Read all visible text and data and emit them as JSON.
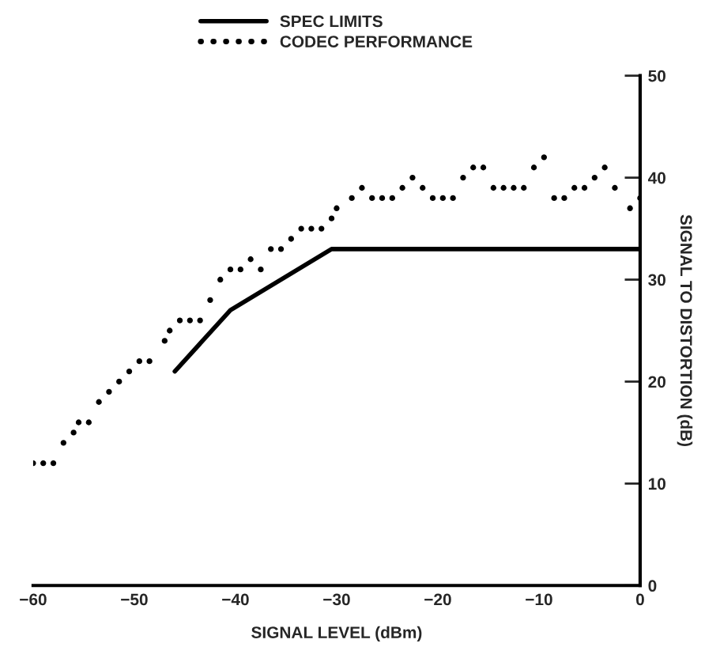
{
  "chart_data": {
    "type": "line",
    "xlabel": "SIGNAL LEVEL (dBm)",
    "ylabel": "SIGNAL TO DISTORTION (dB)",
    "xlim": [
      -60,
      0
    ],
    "xticks": [
      -60,
      -50,
      -40,
      -30,
      -20,
      -10,
      0
    ],
    "ylim": [
      0,
      50
    ],
    "yticks": [
      0,
      10,
      20,
      30,
      40,
      50
    ],
    "grid": false,
    "legend": "top",
    "series": [
      {
        "name": "SPEC LIMITS",
        "color": "#000000",
        "line_style": "solid",
        "x": [
          -46,
          -40.5,
          -30.5,
          0
        ],
        "values": [
          21,
          27,
          33,
          33
        ]
      },
      {
        "name": "CODEC PERFORMANCE",
        "type": "scatter",
        "color": "#000000",
        "marker": "circle",
        "x": [
          -60,
          -59,
          -58,
          -57,
          -56,
          -55.5,
          -54.5,
          -53.5,
          -52.5,
          -51.5,
          -50.5,
          -49.5,
          -48.5,
          -47,
          -46.5,
          -45.5,
          -44.5,
          -43.5,
          -42.5,
          -41.5,
          -40.5,
          -39.5,
          -38.5,
          -37.5,
          -36.5,
          -35.5,
          -34.5,
          -33.5,
          -32.5,
          -31.5,
          -30.5,
          -30,
          -28.5,
          -27.5,
          -26.5,
          -25.5,
          -24.5,
          -23.5,
          -22.5,
          -21.5,
          -20.5,
          -19.5,
          -18.5,
          -17.5,
          -16.5,
          -15.5,
          -14.5,
          -13.5,
          -12.5,
          -11.5,
          -10.5,
          -9.5,
          -8.5,
          -7.5,
          -6.5,
          -5.5,
          -4.5,
          -3.5,
          -2.5,
          -1,
          0
        ],
        "values": [
          12,
          12,
          12,
          14,
          15,
          16,
          16,
          18,
          19,
          20,
          21,
          22,
          22,
          24,
          25,
          26,
          26,
          26,
          28,
          30,
          31,
          31,
          32,
          31,
          33,
          33,
          34,
          35,
          35,
          35,
          36,
          37,
          38,
          39,
          38,
          38,
          38,
          39,
          40,
          39,
          38,
          38,
          38,
          40,
          41,
          41,
          39,
          39,
          39,
          39,
          41,
          42,
          38,
          38,
          39,
          39,
          40,
          41,
          39,
          37,
          38
        ]
      }
    ]
  }
}
